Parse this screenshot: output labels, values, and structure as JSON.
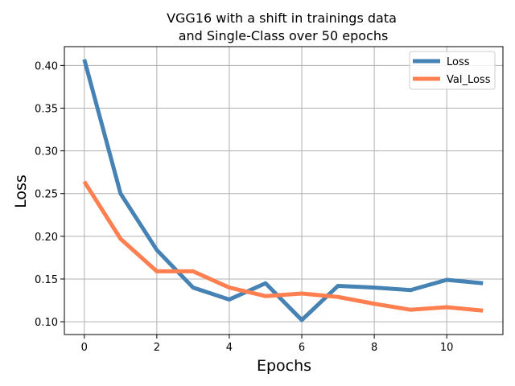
{
  "chart_data": {
    "type": "line",
    "title_lines": [
      "VGG16 with a shift in trainings data",
      "and Single-Class over 50 epochs"
    ],
    "xlabel": "Epochs",
    "ylabel": "Loss",
    "x": [
      0,
      1,
      2,
      3,
      4,
      5,
      6,
      7,
      8,
      9,
      10,
      11
    ],
    "xlim": [
      -0.55,
      11.55
    ],
    "ylim": [
      0.085,
      0.422
    ],
    "xticks": [
      0,
      2,
      4,
      6,
      8,
      10
    ],
    "yticks": [
      0.1,
      0.15,
      0.2,
      0.25,
      0.3,
      0.35,
      0.4
    ],
    "ytick_labels": [
      "0.10",
      "0.15",
      "0.20",
      "0.25",
      "0.30",
      "0.35",
      "0.40"
    ],
    "grid": true,
    "legend_position": "top-right",
    "series": [
      {
        "name": "Loss",
        "color": "#4682b4",
        "values": [
          0.407,
          0.25,
          0.184,
          0.14,
          0.126,
          0.145,
          0.102,
          0.142,
          0.14,
          0.137,
          0.149,
          0.145
        ]
      },
      {
        "name": "Val_Loss",
        "color": "#ff7f50",
        "values": [
          0.264,
          0.197,
          0.159,
          0.159,
          0.14,
          0.13,
          0.133,
          0.129,
          0.121,
          0.114,
          0.117,
          0.113
        ]
      }
    ]
  }
}
